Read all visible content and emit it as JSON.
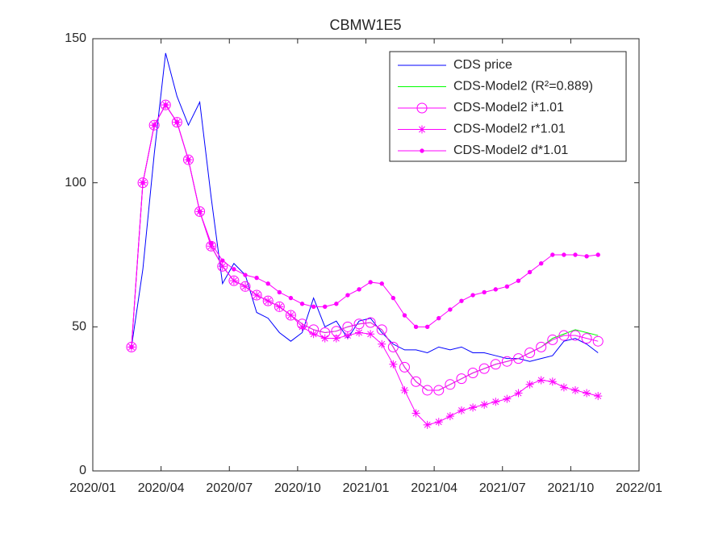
{
  "chart_data": {
    "type": "line",
    "title": "CBMW1E5",
    "xlim": [
      0,
      24
    ],
    "xticks": [
      {
        "value": 0,
        "label": "2020/01"
      },
      {
        "value": 3,
        "label": "2020/04"
      },
      {
        "value": 6,
        "label": "2020/07"
      },
      {
        "value": 9,
        "label": "2020/10"
      },
      {
        "value": 12,
        "label": "2021/01"
      },
      {
        "value": 15,
        "label": "2021/04"
      },
      {
        "value": 18,
        "label": "2021/07"
      },
      {
        "value": 21,
        "label": "2021/10"
      },
      {
        "value": 24,
        "label": "2022/01"
      }
    ],
    "ylim": [
      0,
      150
    ],
    "yticks": [
      0,
      50,
      100,
      150
    ],
    "legend": "upper right",
    "x": [
      1.7,
      2.2,
      2.7,
      3.2,
      3.7,
      4.2,
      4.7,
      5.2,
      5.7,
      6.2,
      6.7,
      7.2,
      7.7,
      8.2,
      8.7,
      9.2,
      9.7,
      10.2,
      10.7,
      11.2,
      11.7,
      12.2,
      12.7,
      13.2,
      13.7,
      14.2,
      14.7,
      15.2,
      15.7,
      16.2,
      16.7,
      17.2,
      17.7,
      18.2,
      18.7,
      19.2,
      19.7,
      20.2,
      20.7,
      21.2,
      21.7,
      22.2
    ],
    "series": [
      {
        "name": "CDS price",
        "color": "#0000ff",
        "marker": "none",
        "values": [
          43,
          70,
          110,
          145,
          130,
          120,
          128,
          95,
          65,
          72,
          68,
          55,
          53,
          48,
          45,
          48,
          60,
          50,
          52,
          46,
          52,
          53,
          48,
          44,
          42,
          42,
          41,
          43,
          42,
          43,
          41,
          41,
          40,
          39,
          39,
          38,
          39,
          40,
          45,
          46,
          44,
          41
        ]
      },
      {
        "name": "CDS-Model2 (R²=0.889)",
        "color": "#00ff00",
        "marker": "none",
        "values": [
          43,
          100,
          120,
          127,
          121,
          108,
          90,
          78,
          71,
          66,
          64,
          61,
          59,
          57,
          54,
          51,
          49,
          48,
          48.5,
          50,
          51,
          51.5,
          49,
          43,
          36,
          31,
          28,
          28,
          30,
          32,
          34,
          35.5,
          37,
          38,
          39,
          41,
          43,
          46,
          47.5,
          49,
          48,
          47
        ]
      },
      {
        "name": "CDS-Model2 i*1.01",
        "color": "#ff00ff",
        "marker": "circle",
        "values": [
          43,
          100,
          120,
          127,
          121,
          108,
          90,
          78,
          71,
          66,
          64,
          61,
          59,
          57,
          54,
          51,
          49,
          48,
          48.5,
          50,
          51,
          51.5,
          49,
          43,
          36,
          31,
          28,
          28,
          30,
          32,
          34,
          35.5,
          37,
          38,
          39,
          41,
          43,
          45.5,
          47,
          47,
          46,
          45
        ]
      },
      {
        "name": "CDS-Model2 r*1.01",
        "color": "#ff00ff",
        "marker": "asterisk",
        "values": [
          43,
          100,
          120,
          127,
          121,
          108,
          90,
          78,
          71,
          66,
          64,
          61,
          59,
          57,
          54,
          50,
          47.5,
          46,
          46,
          47,
          48,
          47.5,
          44,
          37,
          28,
          20,
          16,
          17,
          19,
          21,
          22,
          23,
          24,
          25,
          27,
          30,
          31.5,
          31,
          29,
          28,
          27,
          26
        ]
      },
      {
        "name": "CDS-Model2 d*1.01",
        "color": "#ff00ff",
        "marker": "dot",
        "values": [
          43,
          100,
          120,
          127,
          121,
          108,
          90,
          79,
          73,
          70,
          68,
          67,
          65,
          62,
          60,
          58,
          57,
          57,
          58,
          61,
          63,
          65.5,
          65,
          60,
          54,
          50,
          50,
          53,
          56,
          59,
          61,
          62,
          63,
          64,
          66,
          69,
          72,
          75,
          75,
          75,
          74.5,
          75
        ]
      }
    ]
  }
}
